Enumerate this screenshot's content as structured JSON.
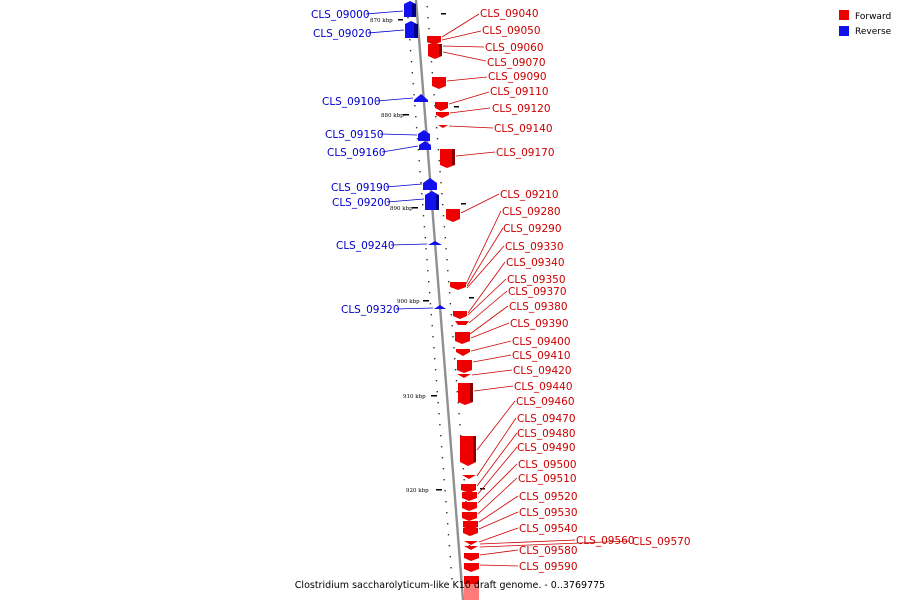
{
  "caption": "Clostridium saccharolyticum-like K10 draft genome. - 0..3769775",
  "legend": [
    {
      "label": "Forward",
      "color": "#ee0000"
    },
    {
      "label": "Reverse",
      "color": "#1111ee"
    }
  ],
  "ticks": [
    "870 kbp",
    "880 kbp",
    "890 kbp",
    "900 kbp",
    "910 kbp",
    "920 kbp"
  ],
  "reverse_genes": [
    "CLS_09000",
    "CLS_09020",
    "CLS_09100",
    "CLS_09150",
    "CLS_09160",
    "CLS_09190",
    "CLS_09200",
    "CLS_09240",
    "CLS_09320"
  ],
  "forward_genes": [
    "CLS_09040",
    "CLS_09050",
    "CLS_09060",
    "CLS_09070",
    "CLS_09090",
    "CLS_09110",
    "CLS_09120",
    "CLS_09140",
    "CLS_09170",
    "CLS_09210",
    "CLS_09280",
    "CLS_09290",
    "CLS_09330",
    "CLS_09340",
    "CLS_09350",
    "CLS_09370",
    "CLS_09380",
    "CLS_09390",
    "CLS_09400",
    "CLS_09410",
    "CLS_09420",
    "CLS_09440",
    "CLS_09460",
    "CLS_09470",
    "CLS_09480",
    "CLS_09490",
    "CLS_09500",
    "CLS_09510",
    "CLS_09520",
    "CLS_09530",
    "CLS_09540",
    "CLS_09560",
    "CLS_09570",
    "CLS_09580",
    "CLS_09590"
  ]
}
